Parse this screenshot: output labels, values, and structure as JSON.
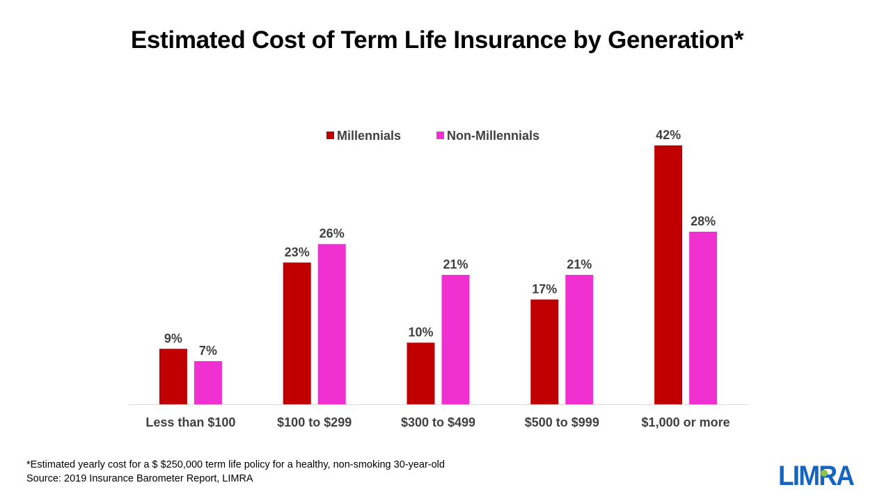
{
  "title": "Estimated Cost of Term Life Insurance by Generation*",
  "footnote": {
    "line1": "*Estimated yearly cost for a $ $250,000 term life policy for a healthy, non-smoking 30-year-old",
    "line2": "Source: 2019 Insurance Barometer Report, LIMRA"
  },
  "logo": {
    "text": "LIMRA",
    "color": "#1565c0",
    "accent": "#8bc34a"
  },
  "chart_data": {
    "type": "bar",
    "categories": [
      "Less than $100",
      "$100 to $299",
      "$300 to $499",
      "$500 to $999",
      "$1,000 or more"
    ],
    "series": [
      {
        "name": "Millennials",
        "values": [
          9,
          23,
          10,
          17,
          42
        ],
        "labels": [
          "9%",
          "23%",
          "10%",
          "17%",
          "42%"
        ],
        "color": "#c00000"
      },
      {
        "name": "Non-Millennials",
        "values": [
          7,
          26,
          21,
          21,
          28
        ],
        "labels": [
          "7%",
          "26%",
          "21%",
          "21%",
          "28%"
        ],
        "color": "#f030d0"
      }
    ],
    "ylim": [
      0,
      42
    ],
    "grid": false,
    "legend": "top-center",
    "xlabel": "",
    "ylabel": ""
  }
}
